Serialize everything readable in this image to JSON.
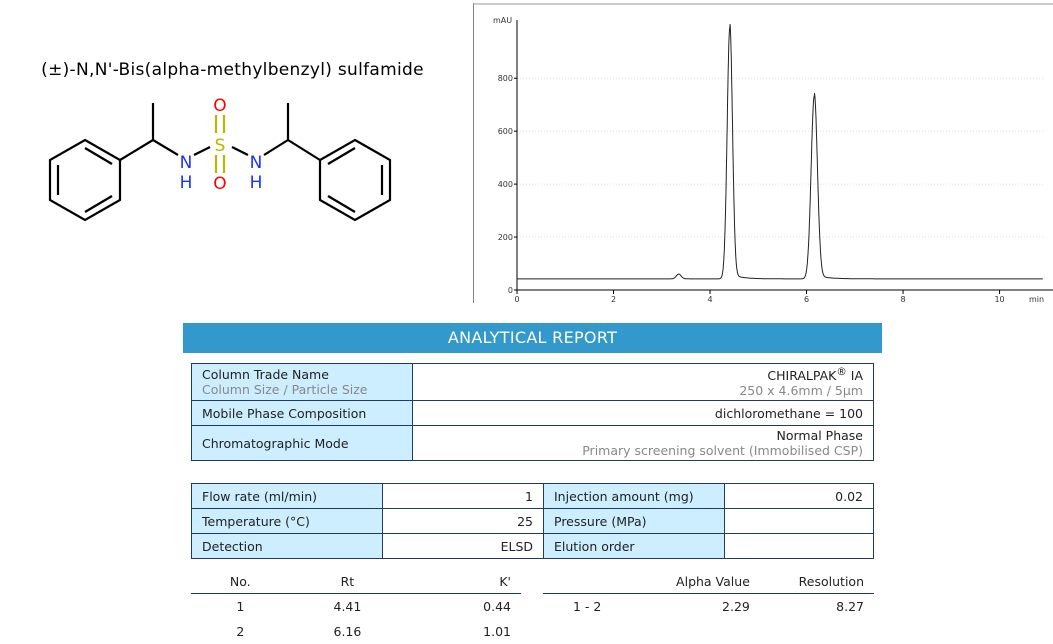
{
  "compound": {
    "name": "(±)-N,N'-Bis(alpha-methylbenzyl) sulfamide",
    "atoms": {
      "S": "S",
      "O": "O",
      "N": "N",
      "H": "H"
    }
  },
  "colors": {
    "banner": "#3399cc",
    "label_bg": "#cceeff",
    "border": "#1f3a66",
    "sulfur": "#b8b800",
    "oxygen": "#ff0000",
    "nitrogen": "#1a33ff"
  },
  "chart_data": {
    "type": "line",
    "xlabel": "min",
    "ylabel": "mAU",
    "xlim": [
      0,
      10.9
    ],
    "ylim": [
      0,
      1020
    ],
    "xticks": [
      "0",
      "2",
      "4",
      "6",
      "8",
      "10"
    ],
    "yticks": [
      "0",
      "200",
      "400",
      "600",
      "800"
    ],
    "grid": true,
    "baseline": 42,
    "peaks": [
      {
        "rt": 3.35,
        "height": 18,
        "width": 0.05
      },
      {
        "rt": 4.41,
        "height": 948,
        "width": 0.055
      },
      {
        "rt": 6.16,
        "height": 690,
        "width": 0.065
      }
    ]
  },
  "report": {
    "title": "ANALYTICAL REPORT",
    "column": {
      "label": "Column Trade Name",
      "sublabel": "Column Size / Particle Size",
      "value": "CHIRALPAK",
      "reg": "®",
      "value2": " IA",
      "subvalue": "250 x 4.6mm / 5µm"
    },
    "mobile": {
      "label": "Mobile Phase Composition",
      "value": "dichloromethane = 100"
    },
    "mode": {
      "label": "Chromatographic Mode",
      "value": "Normal Phase",
      "subvalue": "Primary screening solvent (Immobilised CSP)"
    },
    "params": [
      {
        "l1": "Flow rate (ml/min)",
        "v1": "1",
        "l2": "Injection amount (mg)",
        "v2": "0.02"
      },
      {
        "l1": "Temperature (°C)",
        "v1": "25",
        "l2": "Pressure (MPa)",
        "v2": ""
      },
      {
        "l1": "Detection",
        "v1": "ELSD",
        "l2": "Elution order",
        "v2": ""
      }
    ],
    "peaks_headers": [
      "No.",
      "Rt",
      "K'"
    ],
    "peaks": [
      {
        "no": "1",
        "rt": "4.41",
        "k": "0.44"
      },
      {
        "no": "2",
        "rt": "6.16",
        "k": "1.01"
      }
    ],
    "sel_headers": [
      "",
      "Alpha Value",
      "Resolution"
    ],
    "sel": [
      {
        "pair": "1 - 2",
        "alpha": "2.29",
        "res": "8.27"
      }
    ]
  }
}
